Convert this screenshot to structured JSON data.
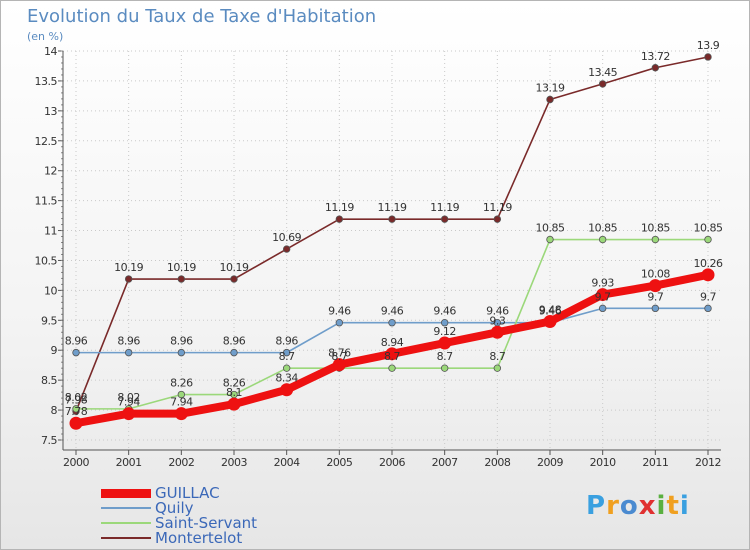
{
  "title": "Evolution du Taux de Taxe d'Habitation",
  "unit": "(en %)",
  "logo": "Proxiti",
  "colors": {
    "logo": [
      "#3aa0e0",
      "#f0a020",
      "#4a8ad0",
      "#e03030",
      "#5ab040",
      "#f0a020",
      "#3aa0e0"
    ]
  },
  "chart_data": {
    "type": "line",
    "title": "Evolution du Taux de Taxe d'Habitation",
    "ylabel": "(en %)",
    "xlabel": "",
    "ylim": [
      7.5,
      14
    ],
    "yticks": [
      "7.5",
      "8",
      "8.5",
      "9",
      "9.5",
      "10",
      "10.5",
      "11",
      "11.5",
      "12",
      "12.5",
      "13",
      "13.5",
      "14"
    ],
    "x": [
      "2000",
      "2001",
      "2002",
      "2003",
      "2004",
      "2005",
      "2006",
      "2007",
      "2008",
      "2009",
      "2010",
      "2011",
      "2012"
    ],
    "grid": true,
    "legend_position": "bottom-left",
    "series": [
      {
        "name": "Montertelot",
        "color": "#7a2a2a",
        "values": [
          7.98,
          10.19,
          10.19,
          10.19,
          10.69,
          11.19,
          11.19,
          11.19,
          11.19,
          13.19,
          13.45,
          13.72,
          13.9
        ],
        "labels": [
          "7.98",
          "10.19",
          "10.19",
          "10.19",
          "10.69",
          "11.19",
          "11.19",
          "11.19",
          "11.19",
          "13.19",
          "13.45",
          "13.72",
          "13.9"
        ]
      },
      {
        "name": "Quily",
        "color": "#6f9dca",
        "values": [
          8.96,
          8.96,
          8.96,
          8.96,
          8.96,
          9.46,
          9.46,
          9.46,
          9.46,
          9.46,
          9.7,
          9.7,
          9.7
        ],
        "labels": [
          "8.96",
          "8.96",
          "8.96",
          "8.96",
          "8.96",
          "9.46",
          "9.46",
          "9.46",
          "9.46",
          "9.46",
          "9.7",
          "9.7",
          "9.7"
        ]
      },
      {
        "name": "Saint-Servant",
        "color": "#9bd87a",
        "values": [
          8.02,
          8.02,
          8.26,
          8.26,
          8.7,
          8.7,
          8.7,
          8.7,
          8.7,
          10.85,
          10.85,
          10.85,
          10.85
        ],
        "labels": [
          "8.02",
          "8.02",
          "8.26",
          "8.26",
          "8.7",
          "8.7",
          "8.7",
          "8.7",
          "8.7",
          "10.85",
          "10.85",
          "10.85",
          "10.85"
        ]
      },
      {
        "name": "GUILLAC",
        "color": "#ee1111",
        "values": [
          7.78,
          7.94,
          7.94,
          8.1,
          8.34,
          8.76,
          8.94,
          9.12,
          9.3,
          9.48,
          9.93,
          10.08,
          10.26
        ],
        "labels": [
          "7.78",
          "7.94",
          "7.94",
          "8.1",
          "8.34",
          "8.76",
          "8.94",
          "9.12",
          "9.3",
          "9.48",
          "9.93",
          "10.08",
          "10.26"
        ]
      }
    ]
  },
  "legend": [
    {
      "name": "GUILLAC",
      "color": "#ee1111"
    },
    {
      "name": "Quily",
      "color": "#6f9dca"
    },
    {
      "name": "Saint-Servant",
      "color": "#9bd87a"
    },
    {
      "name": "Montertelot",
      "color": "#7a2a2a"
    }
  ]
}
